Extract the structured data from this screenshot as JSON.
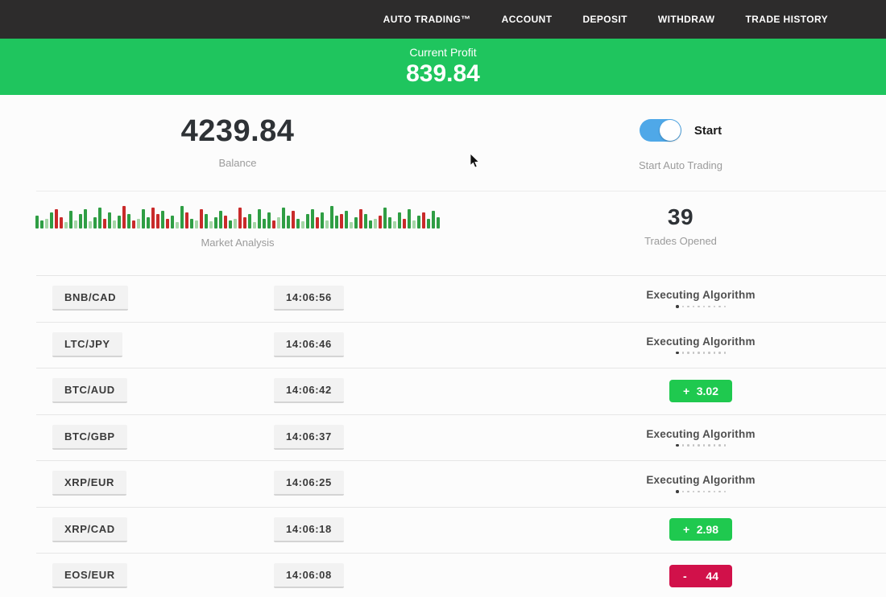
{
  "navbar": {
    "items": [
      {
        "label": "AUTO TRADING™"
      },
      {
        "label": "ACCOUNT"
      },
      {
        "label": "DEPOSIT"
      },
      {
        "label": "WITHDRAW"
      },
      {
        "label": "TRADE HISTORY"
      }
    ]
  },
  "banner": {
    "label": "Current Profit",
    "value": "839.84",
    "bg": "#1fc55e"
  },
  "stats": {
    "balance": {
      "value": "4239.84",
      "label": "Balance"
    },
    "auto_trading": {
      "toggle_label": "Start",
      "label": "Start Auto Trading",
      "toggle_on": true,
      "toggle_color": "#4fa8e8"
    },
    "market_analysis": {
      "label": "Market Analysis",
      "color_map": {
        "g": "#2f9e44",
        "G": "#a5d6a7",
        "r": "#c92a2a",
        "R": "#e59e98"
      },
      "bars": [
        "g:16",
        "g:10",
        "G:12",
        "g:20",
        "r:24",
        "r:14",
        "G:8",
        "g:22",
        "G:10",
        "g:18",
        "g:24",
        "G:9",
        "g:14",
        "g:26",
        "r:12",
        "g:20",
        "G:10",
        "g:16",
        "r:28",
        "g:18",
        "r:10",
        "G:12",
        "g:24",
        "g:14",
        "r:26",
        "r:18",
        "g:22",
        "r:12",
        "g:16",
        "G:8",
        "g:28",
        "r:20",
        "g:12",
        "G:10",
        "r:24",
        "g:18",
        "G:9",
        "g:14",
        "g:22",
        "r:16",
        "g:10",
        "G:12",
        "r:26",
        "r:14",
        "g:18",
        "G:8",
        "g:24",
        "g:12",
        "g:20",
        "r:10",
        "G:14",
        "g:26",
        "g:16",
        "r:22",
        "g:12",
        "G:9",
        "g:18",
        "g:24",
        "r:14",
        "g:20",
        "G:10",
        "g:28",
        "g:16",
        "r:18",
        "g:22",
        "G:8",
        "g:14",
        "r:24",
        "g:18",
        "g:10",
        "G:12",
        "r:16",
        "g:26",
        "g:14",
        "G:9",
        "g:20",
        "r:12",
        "g:24",
        "G:10",
        "g:16",
        "r:20",
        "g:12",
        "g:22",
        "g:14"
      ]
    },
    "trades_opened": {
      "value": "39",
      "label": "Trades Opened"
    }
  },
  "executing_dots_count": 10,
  "trades": [
    {
      "pair": "BNB/CAD",
      "time": "14:06:56",
      "status": {
        "type": "executing",
        "label": "Executing Algorithm"
      }
    },
    {
      "pair": "LTC/JPY",
      "time": "14:06:46",
      "status": {
        "type": "executing",
        "label": "Executing Algorithm"
      }
    },
    {
      "pair": "BTC/AUD",
      "time": "14:06:42",
      "status": {
        "type": "profit",
        "sign": "+",
        "value": "3.02"
      }
    },
    {
      "pair": "BTC/GBP",
      "time": "14:06:37",
      "status": {
        "type": "executing",
        "label": "Executing Algorithm"
      }
    },
    {
      "pair": "XRP/EUR",
      "time": "14:06:25",
      "status": {
        "type": "executing",
        "label": "Executing Algorithm"
      }
    },
    {
      "pair": "XRP/CAD",
      "time": "14:06:18",
      "status": {
        "type": "profit",
        "sign": "+",
        "value": "2.98"
      }
    },
    {
      "pair": "EOS/EUR",
      "time": "14:06:08",
      "status": {
        "type": "loss",
        "sign": "-",
        "value": "44"
      }
    }
  ],
  "colors": {
    "navbar_bg": "#2d2c2c",
    "profit_badge": "#1fc94f",
    "loss_badge": "#d1114a",
    "accent_green": "#1fc55e"
  }
}
